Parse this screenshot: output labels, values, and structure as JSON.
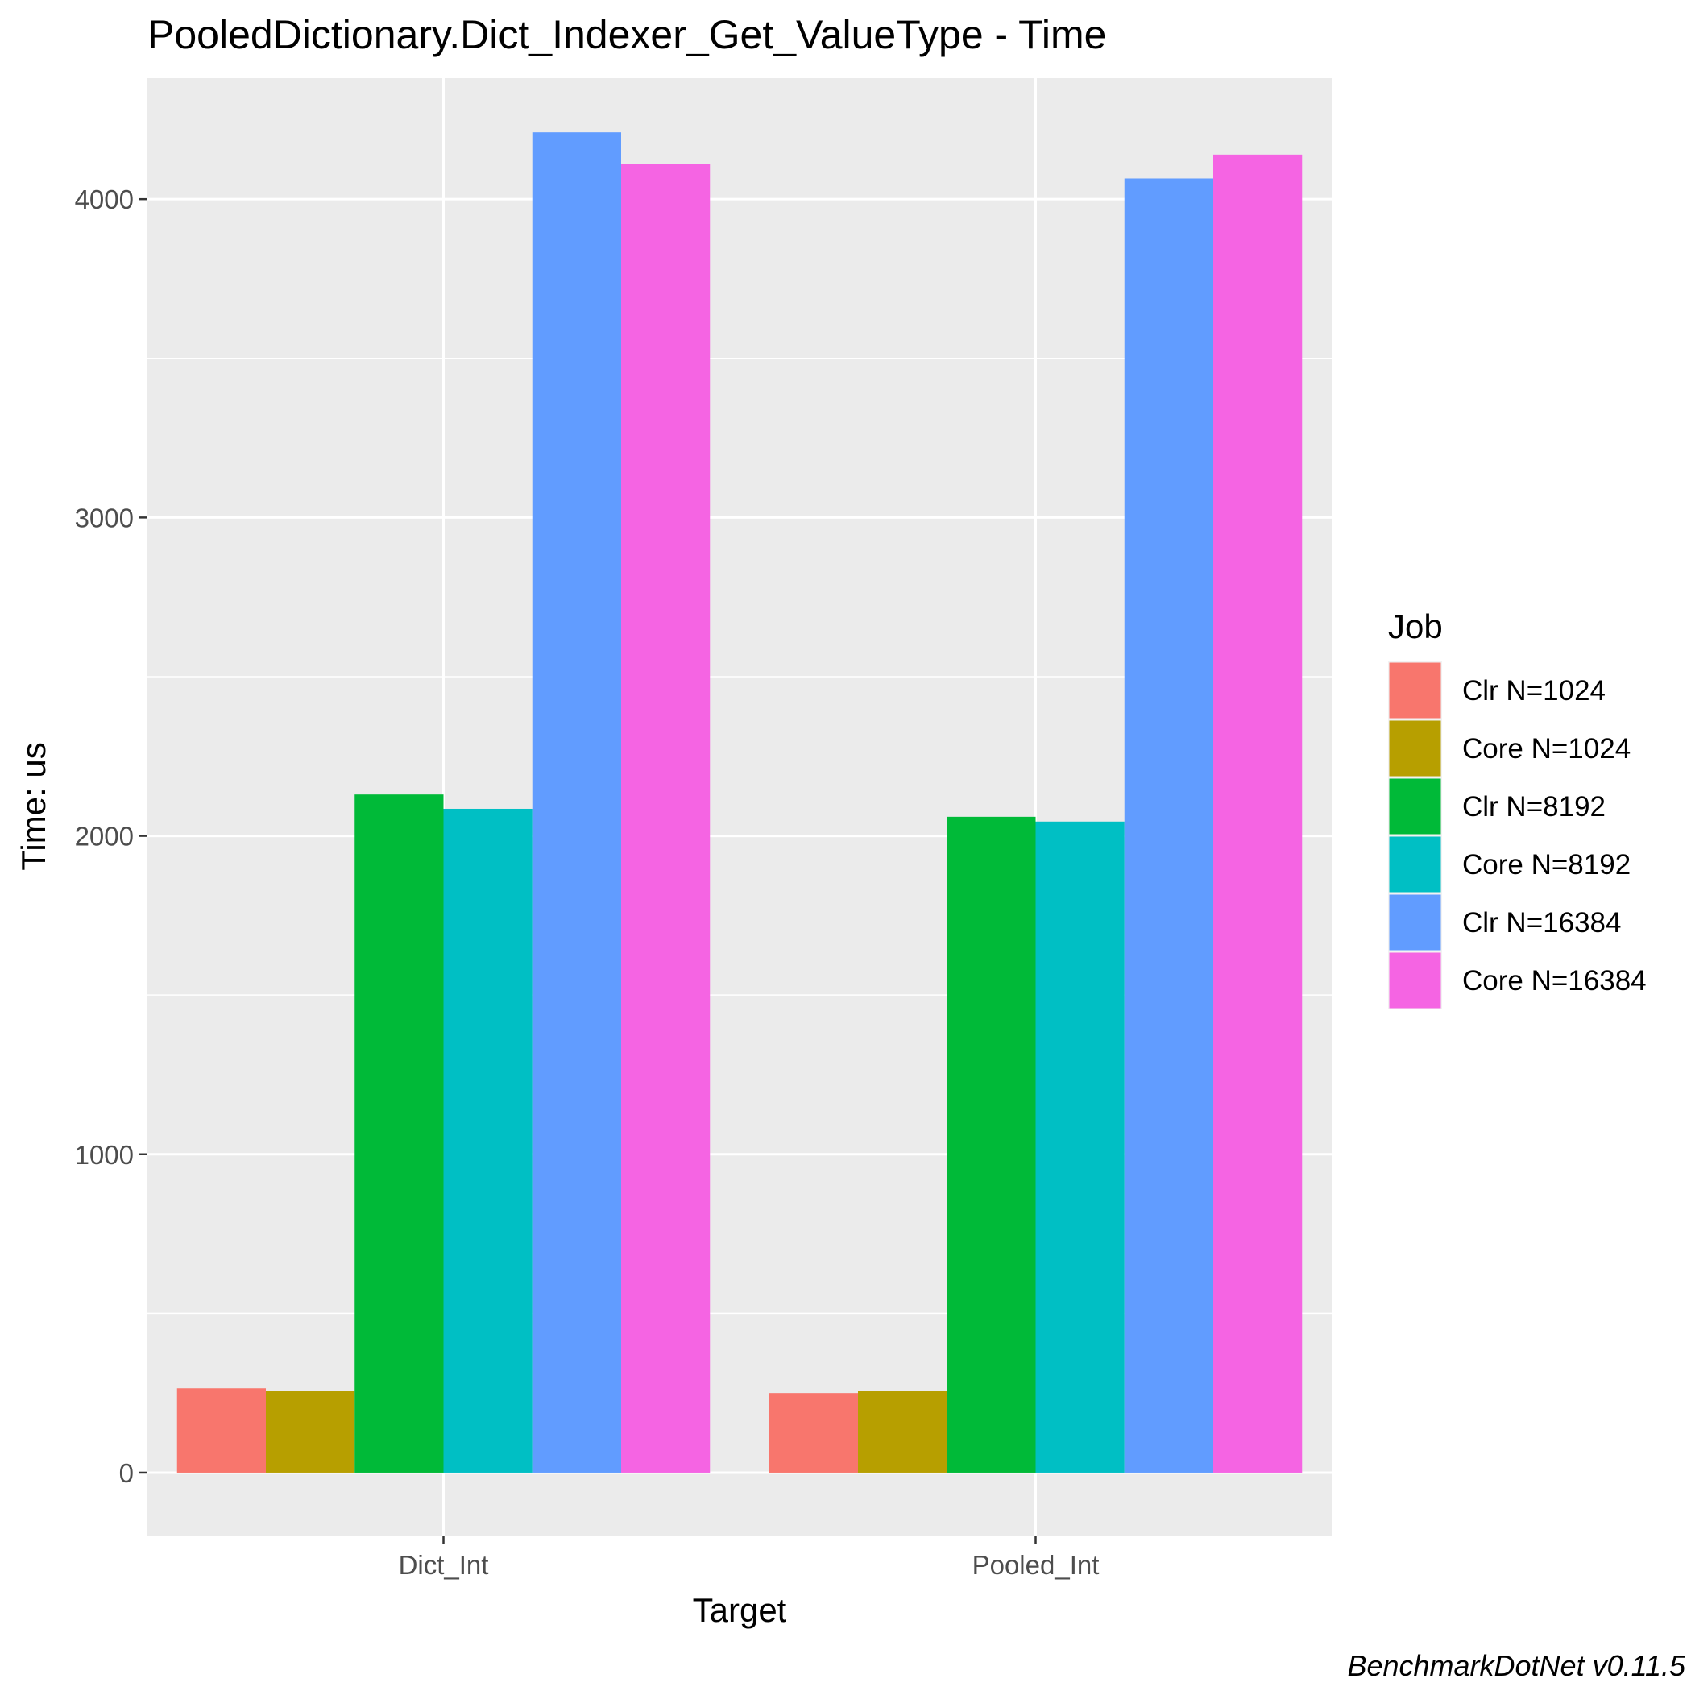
{
  "chart_data": {
    "type": "bar",
    "title": "PooledDictionary.Dict_Indexer_Get_ValueType - Time",
    "xlabel": "Target",
    "ylabel": "Time: us",
    "categories": [
      "Dict_Int",
      "Pooled_Int"
    ],
    "ylim": [
      -200,
      4380
    ],
    "yticks": [
      0,
      1000,
      2000,
      3000,
      4000
    ],
    "grid": true,
    "legend_title": "Job",
    "legend_position": "right",
    "caption": "BenchmarkDotNet v0.11.5",
    "series": [
      {
        "name": "Clr N=1024",
        "color": "#F8766D",
        "values": [
          265,
          250
        ]
      },
      {
        "name": "Core N=1024",
        "color": "#B79F00",
        "values": [
          258,
          258
        ]
      },
      {
        "name": "Clr N=8192",
        "color": "#00BA38",
        "values": [
          2130,
          2060
        ]
      },
      {
        "name": "Core N=8192",
        "color": "#00BFC4",
        "values": [
          2085,
          2045
        ]
      },
      {
        "name": "Clr N=16384",
        "color": "#619CFF",
        "values": [
          4210,
          4065
        ]
      },
      {
        "name": "Core N=16384",
        "color": "#F564E3",
        "values": [
          4110,
          4140
        ]
      }
    ]
  }
}
